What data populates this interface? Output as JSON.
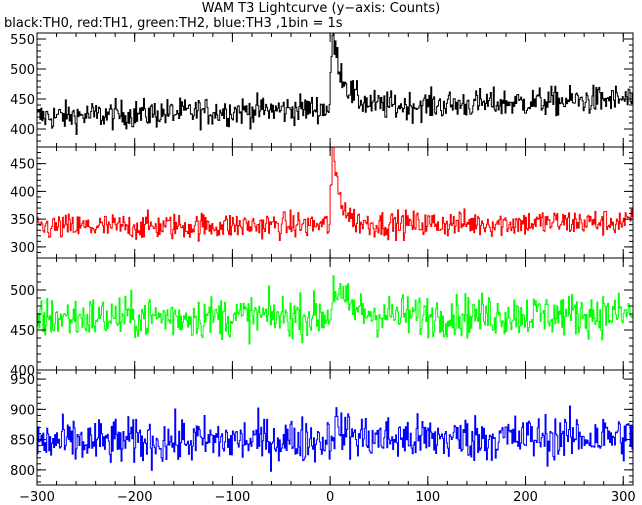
{
  "title": "WAM T3 Lightcurve (y−axis: Counts)",
  "subtitle": "black:TH0, red:TH1, green:TH2, blue:TH3 ,1bin = 1s",
  "chart_data": {
    "type": "line",
    "xlim": [
      -300,
      310
    ],
    "x_ticks": [
      -300,
      -200,
      -100,
      0,
      100,
      200,
      300
    ],
    "x_tick_labels": [
      "−300",
      "−200",
      "−100",
      "0",
      "100",
      "200",
      "300"
    ],
    "bin_size_s": 1,
    "grid": false,
    "panels": [
      {
        "name": "TH0",
        "color": "#000000",
        "ylim": [
          370,
          560
        ],
        "y_ticks": [
          400,
          450,
          500,
          550
        ],
        "y_tick_labels": [
          "400",
          "450",
          "500",
          "550"
        ],
        "baseline_start": 420,
        "baseline_end": 450,
        "noise": 20,
        "peak": 560,
        "peak_x": 2,
        "decay_s": 12
      },
      {
        "name": "TH1",
        "color": "#ff0000",
        "ylim": [
          280,
          480
        ],
        "y_ticks": [
          300,
          350,
          400,
          450
        ],
        "y_tick_labels": [
          "300",
          "350",
          "400",
          "450"
        ],
        "baseline_start": 335,
        "baseline_end": 345,
        "noise": 20,
        "peak": 480,
        "peak_x": 2,
        "decay_s": 8
      },
      {
        "name": "TH2",
        "color": "#00ff00",
        "ylim": [
          400,
          540
        ],
        "y_ticks": [
          400,
          450,
          500
        ],
        "y_tick_labels": [
          "400",
          "450",
          "500"
        ],
        "baseline_start": 465,
        "baseline_end": 470,
        "noise": 22,
        "peak": 505,
        "peak_x": 3,
        "decay_s": 15
      },
      {
        "name": "TH3",
        "color": "#0000ff",
        "ylim": [
          775,
          965
        ],
        "y_ticks": [
          800,
          850,
          900,
          950
        ],
        "y_tick_labels": [
          "800",
          "850",
          "900",
          "950"
        ],
        "baseline_start": 845,
        "baseline_end": 855,
        "noise": 32,
        "peak": 875,
        "peak_x": 3,
        "decay_s": 15
      }
    ]
  }
}
